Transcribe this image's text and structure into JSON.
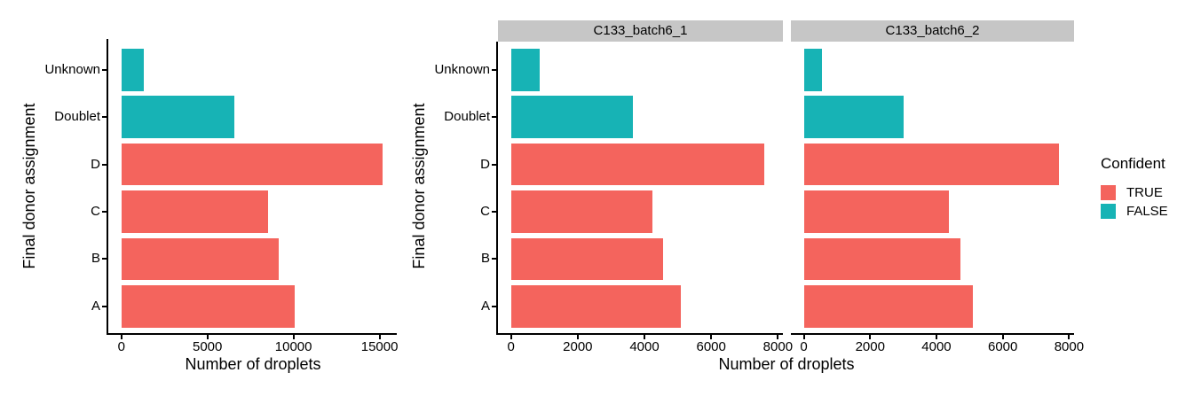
{
  "chart_data": {
    "type": "bar",
    "orientation": "horizontal",
    "ylabel": "Final donor assignment",
    "xlabel": "Number of droplets",
    "categories_top_to_bottom": [
      "Unknown",
      "Doublet",
      "D",
      "C",
      "B",
      "A"
    ],
    "category_confident": {
      "Unknown": "FALSE",
      "Doublet": "FALSE",
      "D": "TRUE",
      "C": "TRUE",
      "B": "TRUE",
      "A": "TRUE"
    },
    "colors": {
      "TRUE": "#F4645D",
      "FALSE": "#17B3B5",
      "strip_background": "#C6C6C6",
      "axis": "#000000"
    },
    "legend": {
      "title": "Confident",
      "entries": [
        {
          "label": "TRUE",
          "color": "#F4645D"
        },
        {
          "label": "FALSE",
          "color": "#17B3B5"
        }
      ],
      "position": "right"
    },
    "grid": false,
    "panels": [
      {
        "facet_label": "",
        "x_ticks": [
          0,
          5000,
          10000,
          15000
        ],
        "xlim": [
          0,
          16000
        ],
        "values": {
          "Unknown": 1300,
          "Doublet": 6550,
          "D": 15200,
          "C": 8500,
          "B": 9150,
          "A": 10050
        }
      },
      {
        "facet_label": "C133_batch6_1",
        "x_ticks": [
          0,
          2000,
          4000,
          6000,
          8000
        ],
        "xlim": [
          0,
          8150
        ],
        "values": {
          "Unknown": 850,
          "Doublet": 3650,
          "D": 7600,
          "C": 4250,
          "B": 4550,
          "A": 5080
        }
      },
      {
        "facet_label": "C133_batch6_2",
        "x_ticks": [
          0,
          2000,
          4000,
          6000,
          8000
        ],
        "xlim": [
          0,
          8150
        ],
        "values": {
          "Unknown": 560,
          "Doublet": 3000,
          "D": 7700,
          "C": 4370,
          "B": 4720,
          "A": 5090
        }
      }
    ]
  }
}
